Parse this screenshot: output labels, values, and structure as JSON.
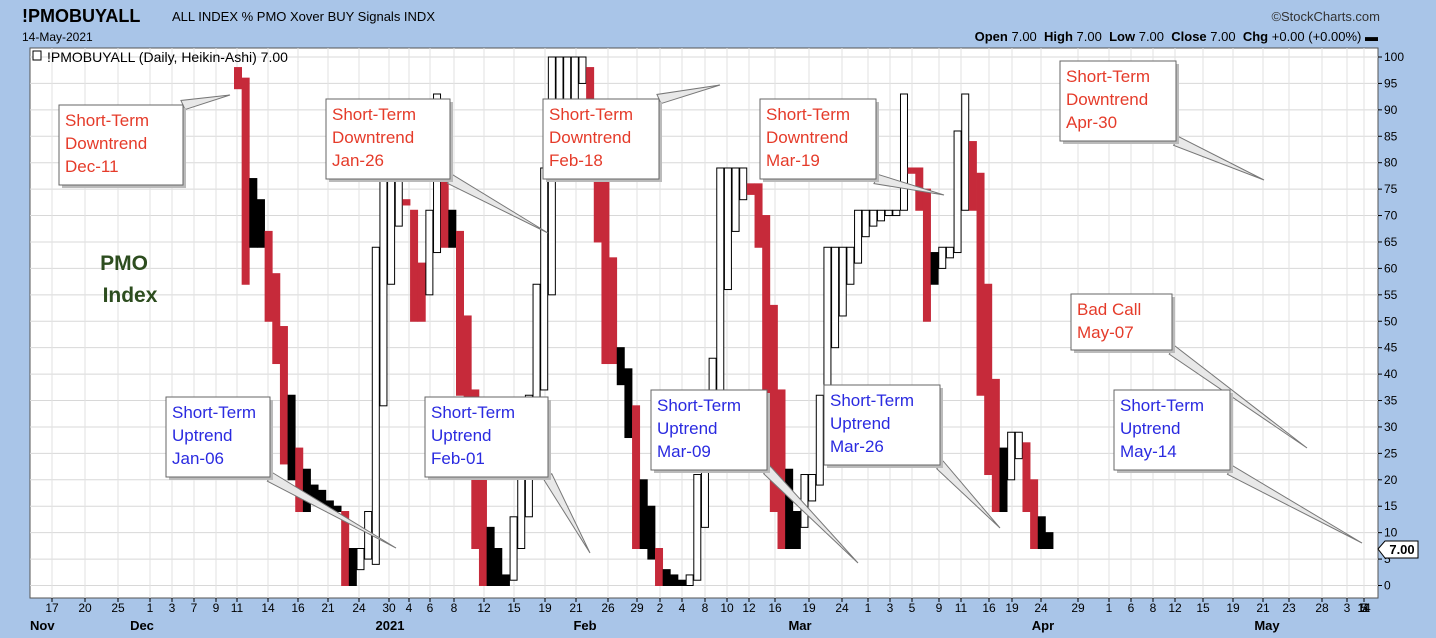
{
  "header": {
    "symbol": "!PMOBUYALL",
    "description": "ALL INDEX % PMO Xover BUY Signals INDX",
    "date": "14-May-2021",
    "brand": "©StockCharts.com",
    "ohlc": [
      {
        "label": "Open",
        "value": "7.00"
      },
      {
        "label": "High",
        "value": "7.00"
      },
      {
        "label": "Low",
        "value": "7.00"
      },
      {
        "label": "Close",
        "value": "7.00"
      },
      {
        "label": "Chg",
        "value": "+0.00 (+0.00%)"
      }
    ],
    "ohlc_suffix": "▬"
  },
  "legend": "!PMOBUYALL (Daily, Heikin-Ashi) 7.00",
  "legend_icon": "bar-chart-icon",
  "index_label": {
    "line1": "PMO",
    "line2": "Index",
    "color": "#2d4d1f"
  },
  "last_value_tag": "7.00",
  "colors": {
    "up": "#ffffff",
    "down_red": "#c62a3a",
    "down_black": "#000000",
    "downtrend_text": "#e53b2a",
    "uptrend_text": "#2a2ae0",
    "frame": "#a9c5e8"
  },
  "annotations": [
    {
      "lines": [
        "Short-Term",
        "Downtrend",
        "Dec-11"
      ],
      "kind": "down"
    },
    {
      "lines": [
        "Short-Term",
        "Downtrend",
        "Jan-26"
      ],
      "kind": "down"
    },
    {
      "lines": [
        "Short-Term",
        "Downtrend",
        "Feb-18"
      ],
      "kind": "down"
    },
    {
      "lines": [
        "Short-Term",
        "Downtrend",
        "Mar-19"
      ],
      "kind": "down"
    },
    {
      "lines": [
        "Short-Term",
        "Downtrend",
        "Apr-30"
      ],
      "kind": "down"
    },
    {
      "lines": [
        "Short-Term",
        "Uptrend",
        "Jan-06"
      ],
      "kind": "up"
    },
    {
      "lines": [
        "Short-Term",
        "Uptrend",
        "Feb-01"
      ],
      "kind": "up"
    },
    {
      "lines": [
        "Short-Term",
        "Uptrend",
        "Mar-09"
      ],
      "kind": "up"
    },
    {
      "lines": [
        "Short-Term",
        "Uptrend",
        "Mar-26"
      ],
      "kind": "up"
    },
    {
      "lines": [
        "Bad Call",
        "May-07"
      ],
      "kind": "down"
    },
    {
      "lines": [
        "Short-Term",
        "Uptrend",
        "May-14"
      ],
      "kind": "up"
    }
  ],
  "chart_data": {
    "type": "candlestick",
    "style": "Heikin-Ashi",
    "ylim": [
      0,
      100
    ],
    "yticks": [
      0,
      5,
      10,
      15,
      20,
      25,
      30,
      35,
      40,
      45,
      50,
      55,
      60,
      65,
      70,
      75,
      80,
      85,
      90,
      95,
      100
    ],
    "grid": true,
    "xaxis": {
      "day_ticks": [
        "17",
        "20",
        "25",
        "1",
        "3",
        "7",
        "9",
        "11",
        "14",
        "16",
        "21",
        "24",
        "30",
        "4",
        "6",
        "8",
        "12",
        "15",
        "19",
        "21",
        "26",
        "29",
        "2",
        "4",
        "8",
        "10",
        "12",
        "16",
        "19",
        "24",
        "1",
        "3",
        "5",
        "9",
        "11",
        "16",
        "19",
        "24",
        "29",
        "1",
        "6",
        "8",
        "12",
        "15",
        "19",
        "21",
        "23",
        "28",
        "3",
        "5",
        "7",
        "11",
        "14"
      ],
      "month_labels": [
        "Nov",
        "Dec",
        "2021",
        "Feb",
        "Mar",
        "Apr",
        "May"
      ]
    },
    "candles": [
      {
        "o": 94,
        "c": 98,
        "h": 98,
        "l": 94,
        "col": "down"
      },
      {
        "o": 96,
        "c": 57,
        "h": 96,
        "l": 57,
        "col": "down"
      },
      {
        "o": 77,
        "c": 64,
        "h": 77,
        "l": 64,
        "col": "black"
      },
      {
        "o": 73,
        "c": 64,
        "h": 73,
        "l": 64,
        "col": "black"
      },
      {
        "o": 67,
        "c": 50,
        "h": 67,
        "l": 50,
        "col": "down"
      },
      {
        "o": 59,
        "c": 42,
        "h": 59,
        "l": 42,
        "col": "down"
      },
      {
        "o": 49,
        "c": 23,
        "h": 49,
        "l": 23,
        "col": "down"
      },
      {
        "o": 36,
        "c": 20,
        "h": 36,
        "l": 20,
        "col": "black"
      },
      {
        "o": 26,
        "c": 14,
        "h": 26,
        "l": 14,
        "col": "down"
      },
      {
        "o": 22,
        "c": 14,
        "h": 22,
        "l": 14,
        "col": "black"
      },
      {
        "o": 19,
        "c": 16,
        "h": 19,
        "l": 16,
        "col": "black"
      },
      {
        "o": 18,
        "c": 15,
        "h": 18,
        "l": 15,
        "col": "black"
      },
      {
        "o": 16,
        "c": 14,
        "h": 16,
        "l": 14,
        "col": "black"
      },
      {
        "o": 15,
        "c": 14,
        "h": 15,
        "l": 14,
        "col": "black"
      },
      {
        "o": 14,
        "c": 0,
        "h": 14,
        "l": 0,
        "col": "down"
      },
      {
        "o": 7,
        "c": 0,
        "h": 7,
        "l": 0,
        "col": "black"
      },
      {
        "o": 3,
        "c": 7,
        "h": 7,
        "l": 3,
        "col": "up"
      },
      {
        "o": 5,
        "c": 14,
        "h": 14,
        "l": 5,
        "col": "up"
      },
      {
        "o": 4,
        "c": 64,
        "h": 64,
        "l": 4,
        "col": "up"
      },
      {
        "o": 34,
        "c": 80,
        "h": 80,
        "l": 34,
        "col": "up"
      },
      {
        "o": 57,
        "c": 79,
        "h": 79,
        "l": 57,
        "col": "up"
      },
      {
        "o": 68,
        "c": 79,
        "h": 79,
        "l": 68,
        "col": "up"
      },
      {
        "o": 73,
        "c": 72,
        "h": 73,
        "l": 72,
        "col": "down"
      },
      {
        "o": 71,
        "c": 50,
        "h": 71,
        "l": 50,
        "col": "down"
      },
      {
        "o": 61,
        "c": 50,
        "h": 61,
        "l": 50,
        "col": "down"
      },
      {
        "o": 55,
        "c": 71,
        "h": 71,
        "l": 55,
        "col": "up"
      },
      {
        "o": 63,
        "c": 93,
        "h": 93,
        "l": 63,
        "col": "up"
      },
      {
        "o": 78,
        "c": 64,
        "h": 78,
        "l": 64,
        "col": "down"
      },
      {
        "o": 71,
        "c": 64,
        "h": 71,
        "l": 64,
        "col": "black"
      },
      {
        "o": 67,
        "c": 36,
        "h": 67,
        "l": 36,
        "col": "down"
      },
      {
        "o": 51,
        "c": 23,
        "h": 51,
        "l": 23,
        "col": "down"
      },
      {
        "o": 37,
        "c": 7,
        "h": 37,
        "l": 7,
        "col": "down"
      },
      {
        "o": 21,
        "c": 0,
        "h": 21,
        "l": 0,
        "col": "down"
      },
      {
        "o": 11,
        "c": 0,
        "h": 11,
        "l": 0,
        "col": "black"
      },
      {
        "o": 7,
        "c": 0,
        "h": 7,
        "l": 0,
        "col": "black"
      },
      {
        "o": 2,
        "c": 0,
        "h": 2,
        "l": 0,
        "col": "black"
      },
      {
        "o": 1,
        "c": 13,
        "h": 13,
        "l": 1,
        "col": "up"
      },
      {
        "o": 7,
        "c": 21,
        "h": 21,
        "l": 7,
        "col": "up"
      },
      {
        "o": 13,
        "c": 36,
        "h": 36,
        "l": 13,
        "col": "up"
      },
      {
        "o": 22,
        "c": 57,
        "h": 57,
        "l": 22,
        "col": "up"
      },
      {
        "o": 37,
        "c": 79,
        "h": 79,
        "l": 37,
        "col": "up"
      },
      {
        "o": 55,
        "c": 100,
        "h": 100,
        "l": 55,
        "col": "up"
      },
      {
        "o": 77,
        "c": 100,
        "h": 100,
        "l": 77,
        "col": "up"
      },
      {
        "o": 88,
        "c": 100,
        "h": 100,
        "l": 88,
        "col": "up"
      },
      {
        "o": 91,
        "c": 100,
        "h": 100,
        "l": 91,
        "col": "up"
      },
      {
        "o": 95,
        "c": 100,
        "h": 100,
        "l": 95,
        "col": "up"
      },
      {
        "o": 98,
        "c": 77,
        "h": 98,
        "l": 77,
        "col": "down"
      },
      {
        "o": 88,
        "c": 65,
        "h": 88,
        "l": 65,
        "col": "down"
      },
      {
        "o": 77,
        "c": 42,
        "h": 77,
        "l": 42,
        "col": "down"
      },
      {
        "o": 62,
        "c": 42,
        "h": 62,
        "l": 42,
        "col": "down"
      },
      {
        "o": 45,
        "c": 38,
        "h": 45,
        "l": 38,
        "col": "black"
      },
      {
        "o": 41,
        "c": 28,
        "h": 41,
        "l": 28,
        "col": "black"
      },
      {
        "o": 34,
        "c": 7,
        "h": 34,
        "l": 7,
        "col": "down"
      },
      {
        "o": 20,
        "c": 7,
        "h": 20,
        "l": 7,
        "col": "black"
      },
      {
        "o": 15,
        "c": 5,
        "h": 15,
        "l": 5,
        "col": "black"
      },
      {
        "o": 7,
        "c": 0,
        "h": 7,
        "l": 0,
        "col": "down"
      },
      {
        "o": 3,
        "c": 0,
        "h": 3,
        "l": 0,
        "col": "black"
      },
      {
        "o": 2,
        "c": 0,
        "h": 2,
        "l": 0,
        "col": "black"
      },
      {
        "o": 1,
        "c": 0,
        "h": 1,
        "l": 0,
        "col": "black"
      },
      {
        "o": 0,
        "c": 2,
        "h": 2,
        "l": 0,
        "col": "up"
      },
      {
        "o": 1,
        "c": 21,
        "h": 21,
        "l": 1,
        "col": "up"
      },
      {
        "o": 11,
        "c": 36,
        "h": 36,
        "l": 11,
        "col": "up"
      },
      {
        "o": 23,
        "c": 43,
        "h": 43,
        "l": 23,
        "col": "up"
      },
      {
        "o": 33,
        "c": 79,
        "h": 79,
        "l": 33,
        "col": "up"
      },
      {
        "o": 56,
        "c": 79,
        "h": 79,
        "l": 56,
        "col": "up"
      },
      {
        "o": 67,
        "c": 79,
        "h": 79,
        "l": 67,
        "col": "up"
      },
      {
        "o": 73,
        "c": 79,
        "h": 79,
        "l": 73,
        "col": "up"
      },
      {
        "o": 76,
        "c": 74,
        "h": 76,
        "l": 74,
        "col": "down"
      },
      {
        "o": 76,
        "c": 64,
        "h": 76,
        "l": 64,
        "col": "down"
      },
      {
        "o": 70,
        "c": 36,
        "h": 70,
        "l": 36,
        "col": "down"
      },
      {
        "o": 53,
        "c": 14,
        "h": 53,
        "l": 14,
        "col": "down"
      },
      {
        "o": 37,
        "c": 7,
        "h": 37,
        "l": 7,
        "col": "down"
      },
      {
        "o": 22,
        "c": 7,
        "h": 22,
        "l": 7,
        "col": "black"
      },
      {
        "o": 14,
        "c": 7,
        "h": 14,
        "l": 7,
        "col": "black"
      },
      {
        "o": 11,
        "c": 21,
        "h": 21,
        "l": 11,
        "col": "up"
      },
      {
        "o": 16,
        "c": 21,
        "h": 21,
        "l": 16,
        "col": "up"
      },
      {
        "o": 19,
        "c": 36,
        "h": 36,
        "l": 19,
        "col": "up"
      },
      {
        "o": 27,
        "c": 64,
        "h": 64,
        "l": 27,
        "col": "up"
      },
      {
        "o": 45,
        "c": 64,
        "h": 64,
        "l": 45,
        "col": "up"
      },
      {
        "o": 51,
        "c": 64,
        "h": 64,
        "l": 51,
        "col": "up"
      },
      {
        "o": 57,
        "c": 64,
        "h": 64,
        "l": 57,
        "col": "up"
      },
      {
        "o": 61,
        "c": 71,
        "h": 71,
        "l": 61,
        "col": "up"
      },
      {
        "o": 66,
        "c": 71,
        "h": 71,
        "l": 66,
        "col": "up"
      },
      {
        "o": 68,
        "c": 71,
        "h": 71,
        "l": 68,
        "col": "up"
      },
      {
        "o": 69,
        "c": 71,
        "h": 71,
        "l": 69,
        "col": "up"
      },
      {
        "o": 70,
        "c": 71,
        "h": 71,
        "l": 70,
        "col": "up"
      },
      {
        "o": 70,
        "c": 71,
        "h": 71,
        "l": 70,
        "col": "up"
      },
      {
        "o": 71,
        "c": 93,
        "h": 93,
        "l": 71,
        "col": "up"
      },
      {
        "o": 79,
        "c": 78,
        "h": 79,
        "l": 78,
        "col": "down"
      },
      {
        "o": 79,
        "c": 71,
        "h": 79,
        "l": 71,
        "col": "down"
      },
      {
        "o": 75,
        "c": 50,
        "h": 75,
        "l": 50,
        "col": "down"
      },
      {
        "o": 63,
        "c": 57,
        "h": 63,
        "l": 57,
        "col": "black"
      },
      {
        "o": 60,
        "c": 64,
        "h": 64,
        "l": 60,
        "col": "up"
      },
      {
        "o": 62,
        "c": 64,
        "h": 64,
        "l": 62,
        "col": "up"
      },
      {
        "o": 63,
        "c": 86,
        "h": 86,
        "l": 63,
        "col": "up"
      },
      {
        "o": 71,
        "c": 93,
        "h": 93,
        "l": 71,
        "col": "up"
      },
      {
        "o": 84,
        "c": 71,
        "h": 84,
        "l": 71,
        "col": "down"
      },
      {
        "o": 78,
        "c": 36,
        "h": 78,
        "l": 36,
        "col": "down"
      },
      {
        "o": 57,
        "c": 21,
        "h": 57,
        "l": 21,
        "col": "down"
      },
      {
        "o": 39,
        "c": 14,
        "h": 39,
        "l": 14,
        "col": "down"
      },
      {
        "o": 26,
        "c": 14,
        "h": 26,
        "l": 14,
        "col": "black"
      },
      {
        "o": 20,
        "c": 29,
        "h": 29,
        "l": 20,
        "col": "up"
      },
      {
        "o": 24,
        "c": 29,
        "h": 29,
        "l": 24,
        "col": "up"
      },
      {
        "o": 27,
        "c": 14,
        "h": 27,
        "l": 14,
        "col": "down"
      },
      {
        "o": 20,
        "c": 7,
        "h": 20,
        "l": 7,
        "col": "down"
      },
      {
        "o": 13,
        "c": 7,
        "h": 13,
        "l": 7,
        "col": "black"
      },
      {
        "o": 10,
        "c": 7,
        "h": 10,
        "l": 7,
        "col": "black"
      }
    ]
  }
}
